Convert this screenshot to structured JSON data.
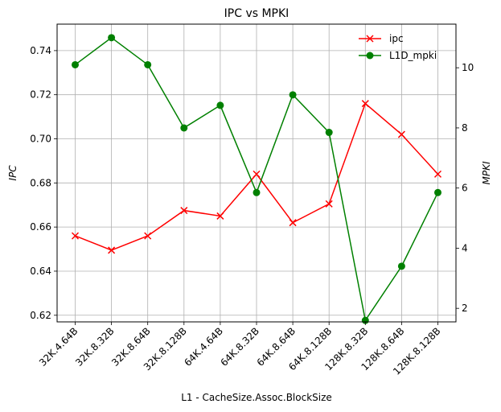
{
  "chart_data": {
    "type": "line",
    "title": "IPC vs MPKI",
    "xlabel": "L1 - CacheSize.Assoc.BlockSize",
    "ylabel_left": "IPC",
    "ylabel_right": "MPKI",
    "categories": [
      "32K.4.64B",
      "32K.8.32B",
      "32K.8.64B",
      "32K.8.128B",
      "64K.4.64B",
      "64K.8.32B",
      "64K.8.64B",
      "64K.8.128B",
      "128K.8.32B",
      "128K.8.64B",
      "128K.8.128B"
    ],
    "left_axis": {
      "ylim": [
        0.617,
        0.752
      ],
      "ticks": [
        0.62,
        0.64,
        0.66,
        0.68,
        0.7,
        0.72,
        0.74
      ],
      "tick_labels": [
        "0.62",
        "0.64",
        "0.66",
        "0.68",
        "0.70",
        "0.72",
        "0.74"
      ]
    },
    "right_axis": {
      "ylim": [
        1.55,
        11.45
      ],
      "ticks": [
        2,
        4,
        6,
        8,
        10
      ],
      "tick_labels": [
        "2",
        "4",
        "6",
        "8",
        "10"
      ]
    },
    "grid": true,
    "legend_position": "top-right",
    "series": [
      {
        "name": "ipc",
        "axis": "left",
        "color": "#ff0000",
        "marker": "x",
        "values": [
          0.656,
          0.6495,
          0.656,
          0.6675,
          0.665,
          0.684,
          0.662,
          0.6705,
          0.716,
          0.702,
          0.684
        ]
      },
      {
        "name": "L1D_mpki",
        "axis": "right",
        "color": "#008000",
        "marker": "o",
        "values": [
          10.1,
          11.0,
          10.1,
          8.0,
          8.75,
          5.85,
          9.1,
          7.85,
          1.6,
          3.4,
          5.85
        ]
      }
    ]
  }
}
